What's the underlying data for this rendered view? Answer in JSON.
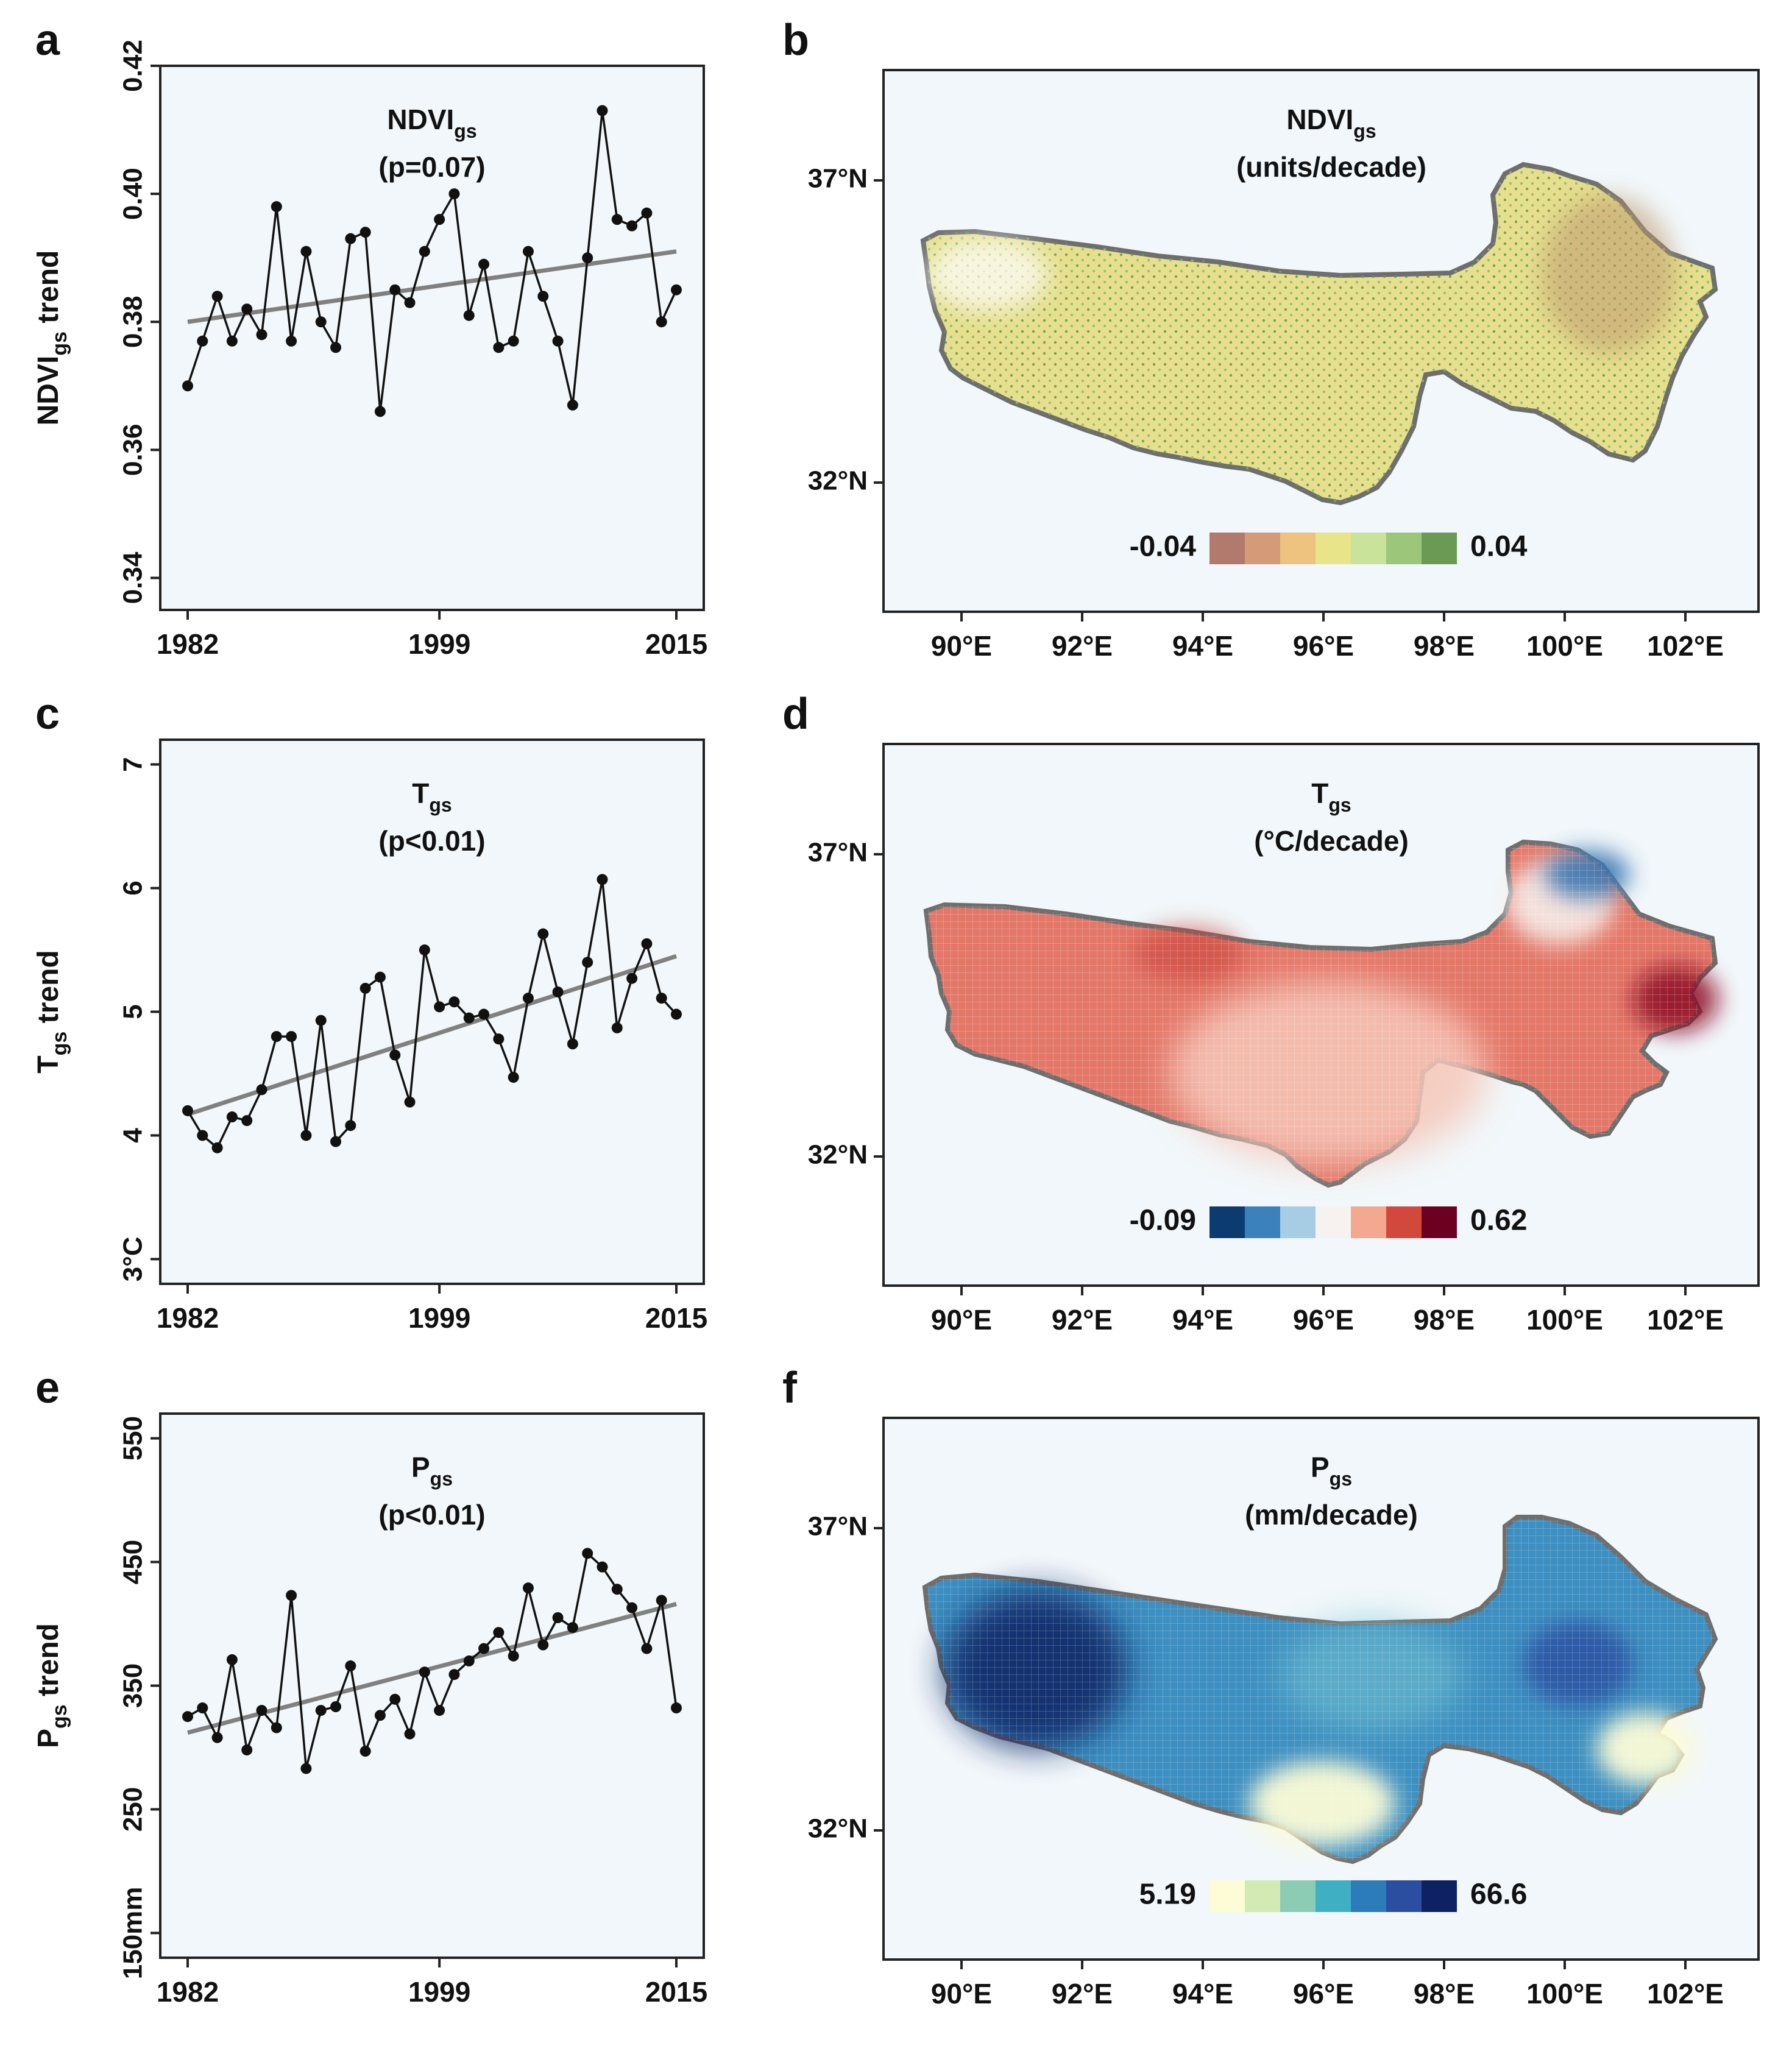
{
  "chart_data": [
    {
      "panel": "a",
      "type": "line",
      "title": "NDVIgs",
      "title_main": "NDVI",
      "title_sub": "gs",
      "pvalue": "(p=0.07)",
      "ylabel_main": "NDVI",
      "ylabel_sub": "gs",
      "ylabel_rest": " trend",
      "ylim": [
        0.335,
        0.42
      ],
      "yticks": [
        "0.34",
        "0.36",
        "0.38",
        "0.40",
        "0.42"
      ],
      "ytick_values": [
        0.34,
        0.36,
        0.38,
        0.4,
        0.42
      ],
      "xticks": [
        "1982",
        "1999",
        "2015"
      ],
      "xtick_values": [
        1982,
        1999,
        2015
      ],
      "xlim": [
        1982,
        2015
      ],
      "x": [
        1982,
        1983,
        1984,
        1985,
        1986,
        1987,
        1988,
        1989,
        1990,
        1991,
        1992,
        1993,
        1994,
        1995,
        1996,
        1997,
        1998,
        1999,
        2000,
        2001,
        2002,
        2003,
        2004,
        2005,
        2006,
        2007,
        2008,
        2009,
        2010,
        2011,
        2012,
        2013,
        2014,
        2015
      ],
      "values": [
        0.37,
        0.377,
        0.384,
        0.377,
        0.382,
        0.378,
        0.398,
        0.377,
        0.391,
        0.38,
        0.376,
        0.393,
        0.394,
        0.366,
        0.385,
        0.383,
        0.391,
        0.396,
        0.4,
        0.381,
        0.389,
        0.376,
        0.377,
        0.391,
        0.384,
        0.377,
        0.367,
        0.39,
        0.413,
        0.396,
        0.395,
        0.397,
        0.38,
        0.385
      ],
      "trend": [
        0.38,
        0.391
      ]
    },
    {
      "panel": "c",
      "type": "line",
      "title": "Tgs",
      "title_main": "T",
      "title_sub": "gs",
      "pvalue": "(p<0.01)",
      "ylabel_main": "T",
      "ylabel_sub": "gs",
      "ylabel_rest": " trend",
      "ylim": [
        2.8,
        7.2
      ],
      "yticks": [
        "3°C",
        "4",
        "5",
        "6",
        "7"
      ],
      "ytick_values": [
        3,
        4,
        5,
        6,
        7
      ],
      "xticks": [
        "1982",
        "1999",
        "2015"
      ],
      "xtick_values": [
        1982,
        1999,
        2015
      ],
      "xlim": [
        1982,
        2015
      ],
      "x": [
        1982,
        1983,
        1984,
        1985,
        1986,
        1987,
        1988,
        1989,
        1990,
        1991,
        1992,
        1993,
        1994,
        1995,
        1996,
        1997,
        1998,
        1999,
        2000,
        2001,
        2002,
        2003,
        2004,
        2005,
        2006,
        2007,
        2008,
        2009,
        2010,
        2011,
        2012,
        2013,
        2014,
        2015
      ],
      "values": [
        4.2,
        4.0,
        3.9,
        4.15,
        4.12,
        4.37,
        4.8,
        4.8,
        4.0,
        4.93,
        3.95,
        4.08,
        5.19,
        5.28,
        4.65,
        4.27,
        5.5,
        5.04,
        5.08,
        4.95,
        4.98,
        4.78,
        4.47,
        5.11,
        5.63,
        5.16,
        4.74,
        5.4,
        6.07,
        4.87,
        5.27,
        5.55,
        5.11,
        4.98
      ],
      "trend": [
        4.17,
        5.45
      ]
    },
    {
      "panel": "e",
      "type": "line",
      "title": "Pgs",
      "title_main": "P",
      "title_sub": "gs",
      "pvalue": "(p<0.01)",
      "ylabel_main": "P",
      "ylabel_sub": "gs",
      "ylabel_rest": " trend",
      "ylim": [
        130,
        570
      ],
      "yticks": [
        "150mm",
        "250",
        "350",
        "450",
        "550"
      ],
      "ytick_values": [
        150,
        250,
        350,
        450,
        550
      ],
      "xticks": [
        "1982",
        "1999",
        "2015"
      ],
      "xtick_values": [
        1982,
        1999,
        2015
      ],
      "xlim": [
        1982,
        2015
      ],
      "x": [
        1982,
        1983,
        1984,
        1985,
        1986,
        1987,
        1988,
        1989,
        1990,
        1991,
        1992,
        1993,
        1994,
        1995,
        1996,
        1997,
        1998,
        1999,
        2000,
        2001,
        2002,
        2003,
        2004,
        2005,
        2006,
        2007,
        2008,
        2009,
        2010,
        2011,
        2012,
        2013,
        2014,
        2015
      ],
      "values": [
        325,
        332,
        308,
        371,
        298,
        330,
        316,
        423,
        283,
        330,
        333,
        366,
        297,
        326,
        339,
        311,
        361,
        330,
        359,
        370,
        380,
        393,
        374,
        429,
        383,
        405,
        397,
        457,
        446,
        428,
        413,
        380,
        419,
        332
      ],
      "trend": [
        312,
        416
      ]
    }
  ],
  "maps": [
    {
      "panel": "b",
      "title_main": "NDVI",
      "title_sub": "gs",
      "title_line2": "(units/decade)",
      "colorbar_min": "-0.04",
      "colorbar_max": "0.04",
      "colors": [
        "#b27a6c",
        "#d39b78",
        "#edc37f",
        "#e8e48a",
        "#c9e39b",
        "#9cc67a",
        "#6b9a55"
      ],
      "land": "#e6df8e",
      "xticks": [
        "90°E",
        "92°E",
        "94°E",
        "96°E",
        "98°E",
        "100°E",
        "102°E"
      ],
      "yticks": [
        "37°N",
        "32°N"
      ]
    },
    {
      "panel": "d",
      "title_main": "T",
      "title_sub": "gs",
      "title_line2": "(°C/decade)",
      "colorbar_min": "-0.09",
      "colorbar_max": "0.62",
      "colors": [
        "#0b3b70",
        "#3b82bd",
        "#a7cde4",
        "#f5f2f0",
        "#f3a88f",
        "#d3483d",
        "#6b0020"
      ],
      "land": "#e37768",
      "xticks": [
        "90°E",
        "92°E",
        "94°E",
        "96°E",
        "98°E",
        "100°E",
        "102°E"
      ],
      "yticks": [
        "37°N",
        "32°N"
      ]
    },
    {
      "panel": "f",
      "title_main": "P",
      "title_sub": "gs",
      "title_line2": "(mm/decade)",
      "colorbar_min": "5.19",
      "colorbar_max": "66.6",
      "colors": [
        "#fcfcd6",
        "#d3eab4",
        "#8ccbb4",
        "#3fafc3",
        "#2c7cba",
        "#2b4ea0",
        "#0e2163"
      ],
      "land": "#3d8fc1",
      "xticks": [
        "90°E",
        "92°E",
        "94°E",
        "96°E",
        "98°E",
        "100°E",
        "102°E"
      ],
      "yticks": [
        "37°N",
        "32°N"
      ]
    }
  ],
  "panel_letters": [
    "a",
    "b",
    "c",
    "d",
    "e",
    "f"
  ]
}
